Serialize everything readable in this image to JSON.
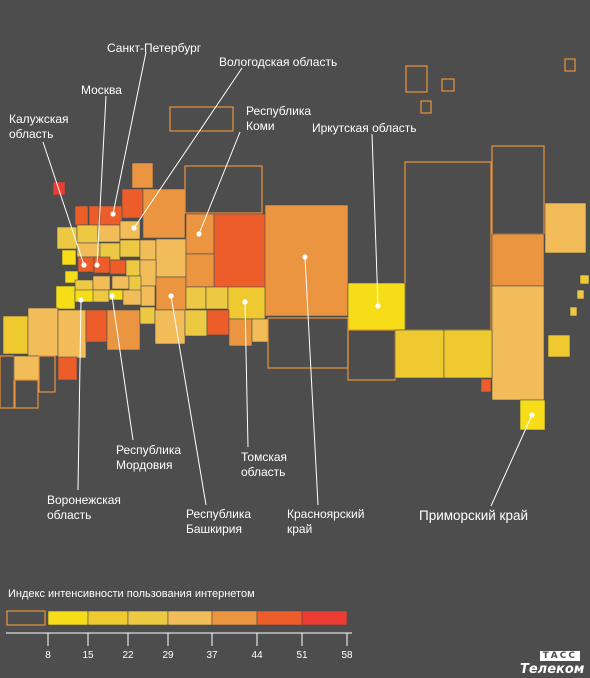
{
  "colors": {
    "background": "#4d4d4d",
    "outline": "#e8913a",
    "scale": [
      "#f7dd17",
      "#efc930",
      "#edc842",
      "#f2bd58",
      "#ec9541",
      "#ec5d2a",
      "#ea3c32"
    ]
  },
  "legend": {
    "title": "Индекс интенсивности пользования интернетом",
    "ticks": [
      "8",
      "15",
      "22",
      "29",
      "37",
      "44",
      "51",
      "58"
    ]
  },
  "labels": {
    "spb": "Санкт-Петербург",
    "vologda": "Вологодская область",
    "moscow": "Москва",
    "kaluga": "Калужская\nобласть",
    "komi": "Республика\nКоми",
    "irkutsk": "Иркутская область",
    "mordovia": "Республика\nМордовия",
    "tomsk": "Томская\nобласть",
    "voronezh": "Воронежская\nобласть",
    "bashkiria": "Республика\nБашкирия",
    "krasnoyarsk": "Красноярский\nкрай",
    "primorsky": "Приморский край"
  },
  "logo": {
    "line1": "ТАСС",
    "line2": "Телеком"
  }
}
